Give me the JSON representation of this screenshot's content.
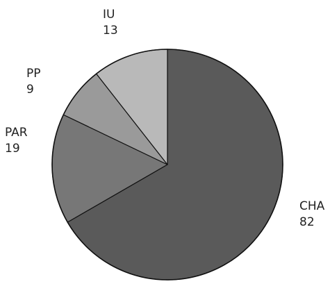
{
  "chart_data": {
    "type": "pie",
    "title": "",
    "slices": [
      {
        "label": "CHA",
        "value": 82,
        "color": "#5a5a5a"
      },
      {
        "label": "PAR",
        "value": 19,
        "color": "#777777"
      },
      {
        "label": "PP",
        "value": 9,
        "color": "#9a9a9a"
      },
      {
        "label": "IU",
        "value": 13,
        "color": "#b9b9b9"
      }
    ],
    "start": "12 o'clock",
    "direction": "clockwise",
    "legend": "none"
  }
}
